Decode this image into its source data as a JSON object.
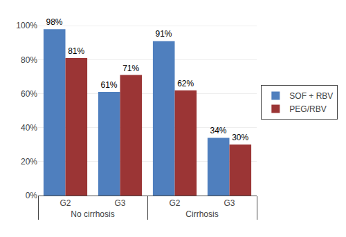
{
  "chart_data": {
    "type": "bar",
    "categories": [
      [
        "No cirrhosis",
        "G2"
      ],
      [
        "No cirrhosis",
        "G3"
      ],
      [
        "Cirrhosis",
        "G2"
      ],
      [
        "Cirrhosis",
        "G3"
      ]
    ],
    "series": [
      {
        "name": "SOF + RBV",
        "color": "#4f7fbe",
        "values": [
          98,
          61,
          91,
          34
        ],
        "value_labels": [
          "98%",
          "61%",
          "91%",
          "34%"
        ]
      },
      {
        "name": "PEG/RBV",
        "color": "#9b3535",
        "values": [
          81,
          71,
          62,
          30
        ],
        "value_labels": [
          "81%",
          "71%",
          "62%",
          "30%"
        ]
      }
    ],
    "ylim": [
      0,
      105
    ],
    "yticks": [
      {
        "value": 0,
        "label": "0%"
      },
      {
        "value": 20,
        "label": "20%"
      },
      {
        "value": 40,
        "label": "40%"
      },
      {
        "value": 60,
        "label": "60%"
      },
      {
        "value": 80,
        "label": "80%"
      },
      {
        "value": 100,
        "label": "100%"
      }
    ],
    "grid": true,
    "legend": "right",
    "data_labels": true
  }
}
